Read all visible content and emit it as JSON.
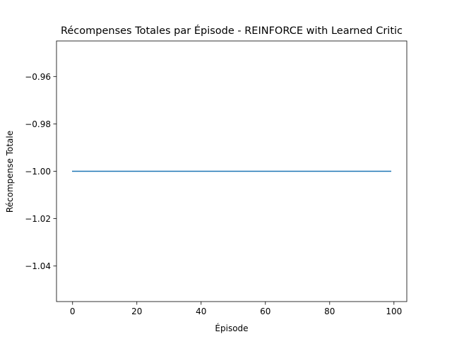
{
  "chart_data": {
    "type": "line",
    "title": "Récompenses Totales par Épisode - REINFORCE with Learned Critic",
    "xlabel": "Épisode",
    "ylabel": "Récompense Totale",
    "xlim": [
      -5,
      104
    ],
    "ylim": [
      -1.055,
      -0.945
    ],
    "xticks": [
      0,
      20,
      40,
      60,
      80,
      100
    ],
    "xtick_labels": [
      "0",
      "20",
      "40",
      "60",
      "80",
      "100"
    ],
    "yticks": [
      -0.96,
      -0.98,
      -1.0,
      -1.02,
      -1.04
    ],
    "ytick_labels": [
      "−0.96",
      "−0.98",
      "−1.00",
      "−1.02",
      "−1.04"
    ],
    "grid": false,
    "series": [
      {
        "color": "#1f77b4",
        "x_start": 0,
        "x_end": 99,
        "values": [
          -1,
          -1,
          -1,
          -1,
          -1,
          -1,
          -1,
          -1,
          -1,
          -1,
          -1,
          -1,
          -1,
          -1,
          -1,
          -1,
          -1,
          -1,
          -1,
          -1,
          -1,
          -1,
          -1,
          -1,
          -1,
          -1,
          -1,
          -1,
          -1,
          -1,
          -1,
          -1,
          -1,
          -1,
          -1,
          -1,
          -1,
          -1,
          -1,
          -1,
          -1,
          -1,
          -1,
          -1,
          -1,
          -1,
          -1,
          -1,
          -1,
          -1,
          -1,
          -1,
          -1,
          -1,
          -1,
          -1,
          -1,
          -1,
          -1,
          -1,
          -1,
          -1,
          -1,
          -1,
          -1,
          -1,
          -1,
          -1,
          -1,
          -1,
          -1,
          -1,
          -1,
          -1,
          -1,
          -1,
          -1,
          -1,
          -1,
          -1,
          -1,
          -1,
          -1,
          -1,
          -1,
          -1,
          -1,
          -1,
          -1,
          -1,
          -1,
          -1,
          -1,
          -1,
          -1,
          -1,
          -1,
          -1,
          -1,
          -1
        ]
      }
    ]
  }
}
